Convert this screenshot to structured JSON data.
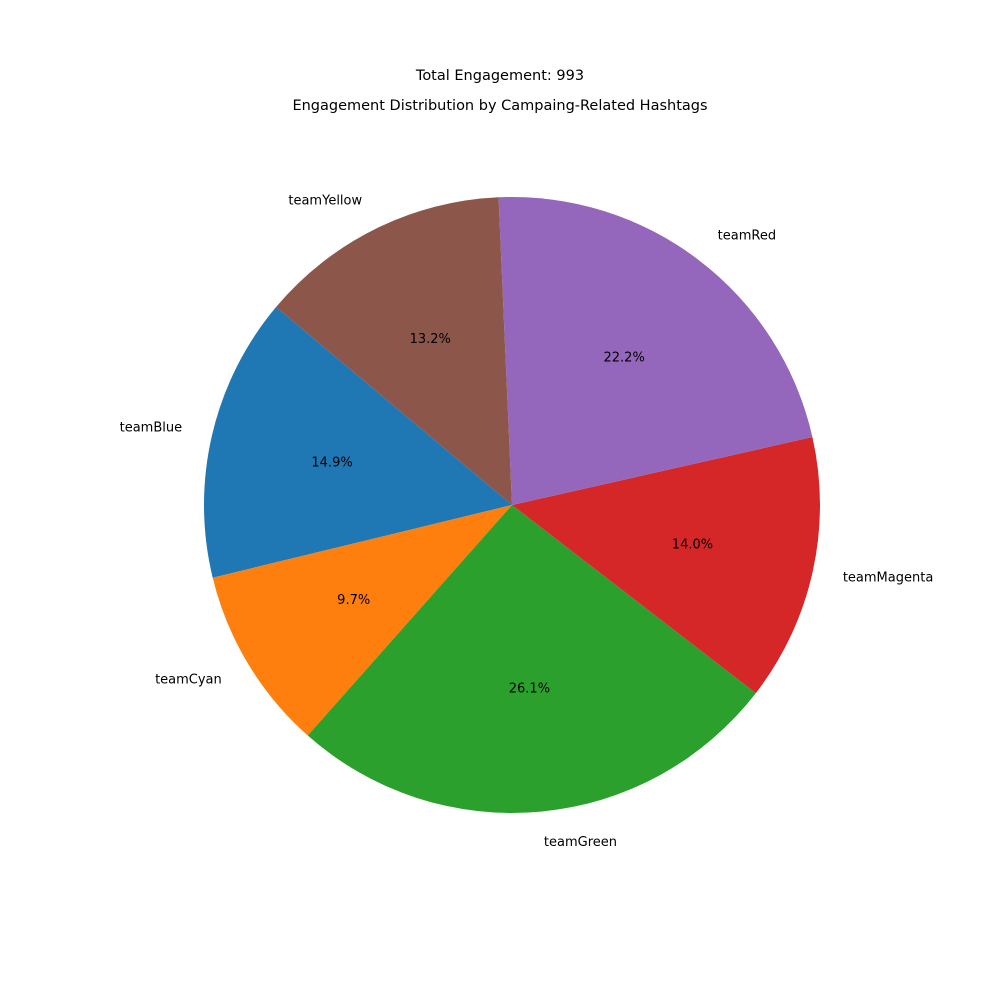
{
  "suptitle": "Total Engagement: 993",
  "chart_data": {
    "type": "pie",
    "title": "Engagement Distribution by Campaing-Related Hashtags",
    "total": 993,
    "start_angle_deg": 140,
    "direction": "counterclockwise",
    "slices": [
      {
        "label": "teamBlue",
        "value": 148,
        "pct_label": "14.9%",
        "color": "#1f77b4"
      },
      {
        "label": "teamCyan",
        "value": 96,
        "pct_label": "9.7%",
        "color": "#ff7f0e"
      },
      {
        "label": "teamGreen",
        "value": 259,
        "pct_label": "26.1%",
        "color": "#2ca02c"
      },
      {
        "label": "teamMagenta",
        "value": 139,
        "pct_label": "14.0%",
        "color": "#d62728"
      },
      {
        "label": "teamRed",
        "value": 220,
        "pct_label": "22.2%",
        "color": "#9467bd"
      },
      {
        "label": "teamYellow",
        "value": 131,
        "pct_label": "13.2%",
        "color": "#8c564b"
      }
    ]
  }
}
